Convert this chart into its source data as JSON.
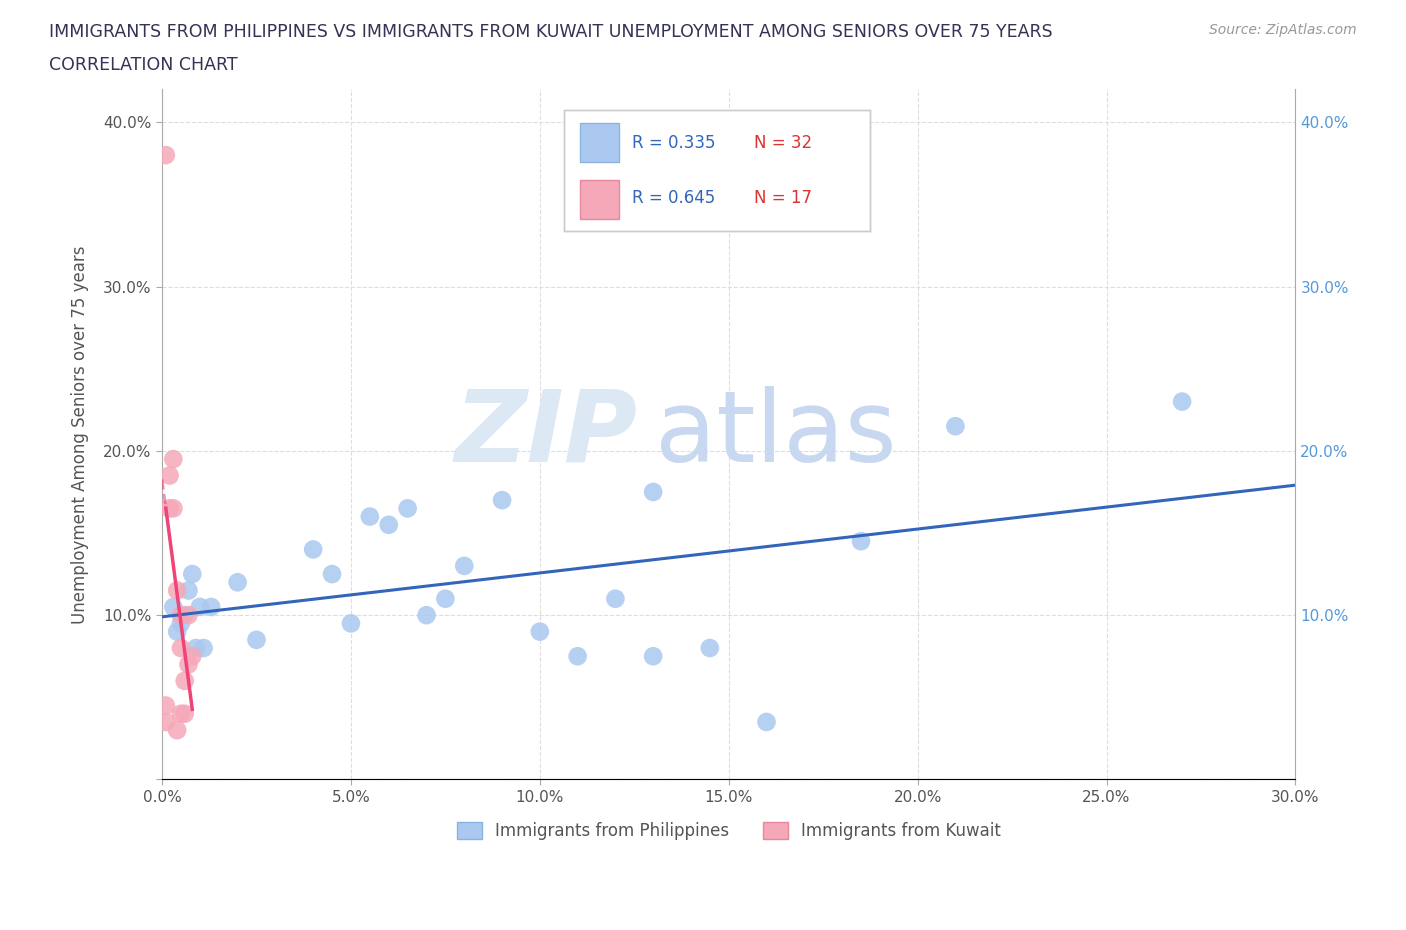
{
  "title_line1": "IMMIGRANTS FROM PHILIPPINES VS IMMIGRANTS FROM KUWAIT UNEMPLOYMENT AMONG SENIORS OVER 75 YEARS",
  "title_line2": "CORRELATION CHART",
  "source_text": "Source: ZipAtlas.com",
  "ylabel": "Unemployment Among Seniors over 75 years",
  "xlim": [
    0.0,
    0.3
  ],
  "ylim": [
    0.0,
    0.42
  ],
  "xticks": [
    0.0,
    0.05,
    0.1,
    0.15,
    0.2,
    0.25,
    0.3
  ],
  "yticks": [
    0.0,
    0.1,
    0.2,
    0.3,
    0.4
  ],
  "xtick_labels": [
    "0.0%",
    "5.0%",
    "10.0%",
    "15.0%",
    "20.0%",
    "25.0%",
    "30.0%"
  ],
  "ytick_labels": [
    "",
    "10.0%",
    "20.0%",
    "30.0%",
    "40.0%"
  ],
  "philippines_color": "#aac8f0",
  "kuwait_color": "#f5a8b8",
  "trend_philippines_color": "#3366bb",
  "trend_kuwait_color": "#ee4477",
  "philippines_R": 0.335,
  "philippines_N": 32,
  "kuwait_R": 0.645,
  "kuwait_N": 17,
  "watermark_zip": "ZIP",
  "watermark_atlas": "atlas",
  "philippines_x": [
    0.003,
    0.004,
    0.005,
    0.006,
    0.007,
    0.008,
    0.009,
    0.01,
    0.011,
    0.013,
    0.02,
    0.025,
    0.04,
    0.045,
    0.05,
    0.055,
    0.06,
    0.065,
    0.07,
    0.075,
    0.08,
    0.09,
    0.1,
    0.11,
    0.12,
    0.13,
    0.145,
    0.16,
    0.185,
    0.21,
    0.27,
    0.13
  ],
  "philippines_y": [
    0.105,
    0.09,
    0.095,
    0.1,
    0.115,
    0.125,
    0.08,
    0.105,
    0.08,
    0.105,
    0.12,
    0.085,
    0.14,
    0.125,
    0.095,
    0.16,
    0.155,
    0.165,
    0.1,
    0.11,
    0.13,
    0.17,
    0.09,
    0.075,
    0.11,
    0.075,
    0.08,
    0.035,
    0.145,
    0.215,
    0.23,
    0.175
  ],
  "kuwait_x": [
    0.001,
    0.001,
    0.001,
    0.002,
    0.002,
    0.003,
    0.003,
    0.004,
    0.004,
    0.005,
    0.005,
    0.005,
    0.006,
    0.006,
    0.007,
    0.007,
    0.008
  ],
  "kuwait_y": [
    0.38,
    0.045,
    0.035,
    0.185,
    0.165,
    0.195,
    0.165,
    0.03,
    0.115,
    0.1,
    0.08,
    0.04,
    0.06,
    0.04,
    0.1,
    0.07,
    0.075
  ]
}
